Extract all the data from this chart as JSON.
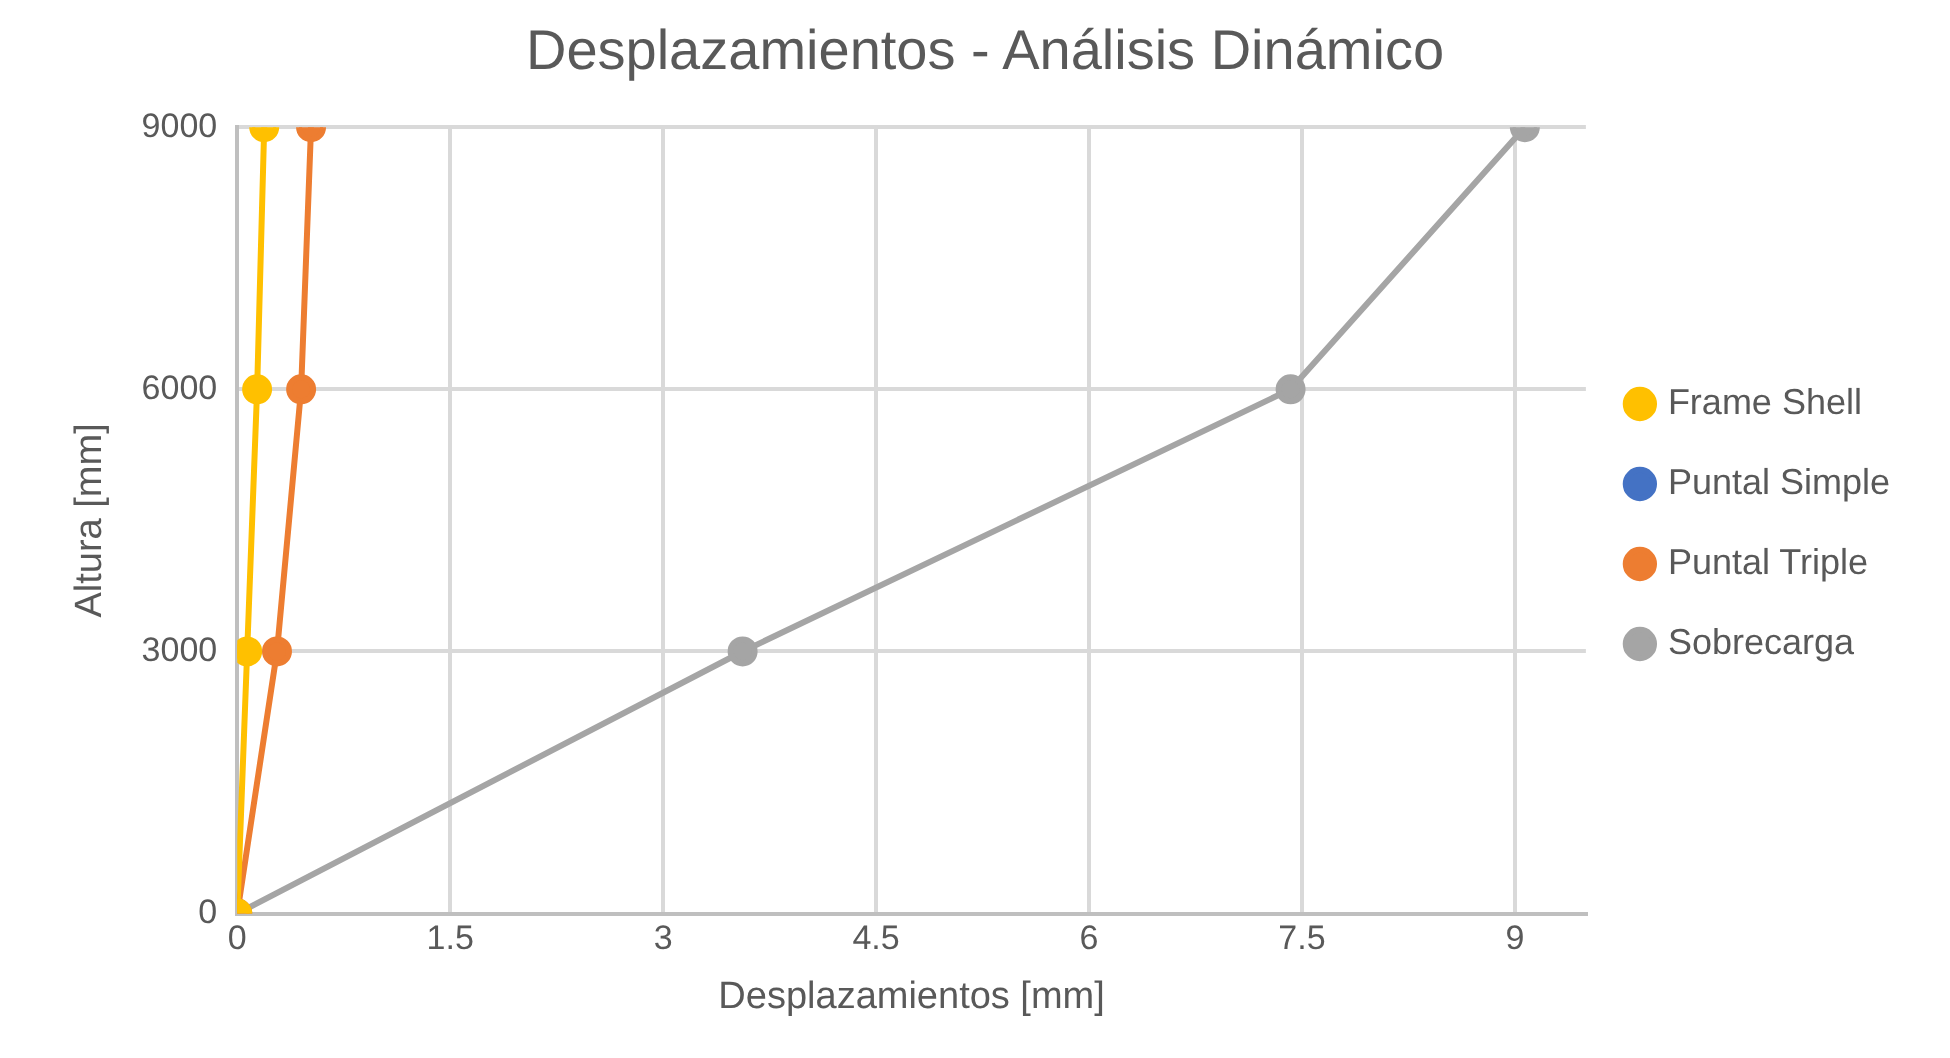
{
  "chart_data": {
    "type": "line",
    "title": "Desplazamientos - Análisis Dinámico",
    "xlabel": "Desplazamientos [mm]",
    "ylabel": "Altura [mm]",
    "series": [
      {
        "name": "Frame Shell",
        "color": "#ffc000",
        "x": [
          0,
          0.07,
          0.14,
          0.19
        ],
        "values": [
          0,
          3000,
          6000,
          9000
        ]
      },
      {
        "name": "Puntal Simple",
        "color": "#4472c4",
        "values": [
          null,
          null,
          null,
          null
        ]
      },
      {
        "name": "Puntal Triple",
        "color": "#ed7d31",
        "x": [
          0,
          0.28,
          0.45,
          0.52
        ],
        "values": [
          0,
          3000,
          6000,
          9000
        ]
      },
      {
        "name": "Sobrecarga",
        "color": "#a5a5a5",
        "x": [
          0,
          3.56,
          7.42,
          9.07
        ],
        "values": [
          0,
          3000,
          6000,
          9000
        ]
      }
    ],
    "xlim": [
      0,
      9.5
    ],
    "xticks": [
      0,
      1.5,
      3,
      4.5,
      6,
      7.5,
      9
    ],
    "ylim": [
      0,
      9000
    ],
    "yticks": [
      0,
      3000,
      6000,
      9000
    ],
    "grid": true,
    "legend": "right",
    "marker": "circle",
    "line_style": "solid"
  }
}
